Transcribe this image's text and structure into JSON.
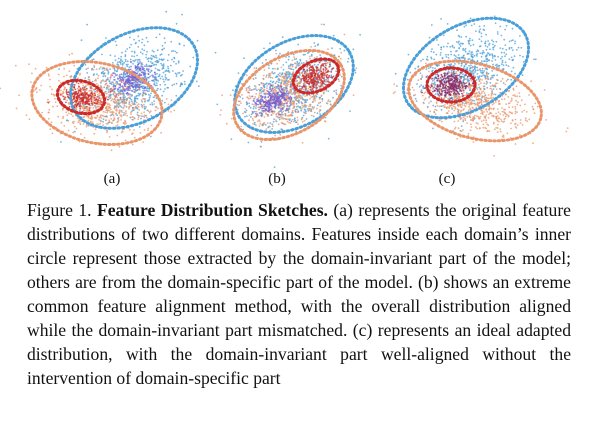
{
  "figure": {
    "panels": [
      {
        "label": "(a)"
      },
      {
        "label": "(b)"
      },
      {
        "label": "(c)"
      }
    ],
    "colors": {
      "source_outer": "#e9956a",
      "source_inner": "#cc2a2a",
      "target_outer": "#4a9fd8",
      "target_inner": "#7a5fd0",
      "mixed_inner": "#8a2c6a"
    }
  },
  "caption": {
    "number": "Figure 1.",
    "title": "Feature Distribution Sketches.",
    "body": "(a) represents the original feature distributions of two different domains. Features inside each domain’s inner circle represent those extracted by the domain-invariant part of the model; others are from the domain-specific part of the model. (b) shows an extreme common feature alignment method, with the overall distribution aligned while the domain-invariant part mismatched. (c) represents an ideal adapted distribution, with the domain-invariant part well-aligned without the intervention of domain-specific part"
  }
}
